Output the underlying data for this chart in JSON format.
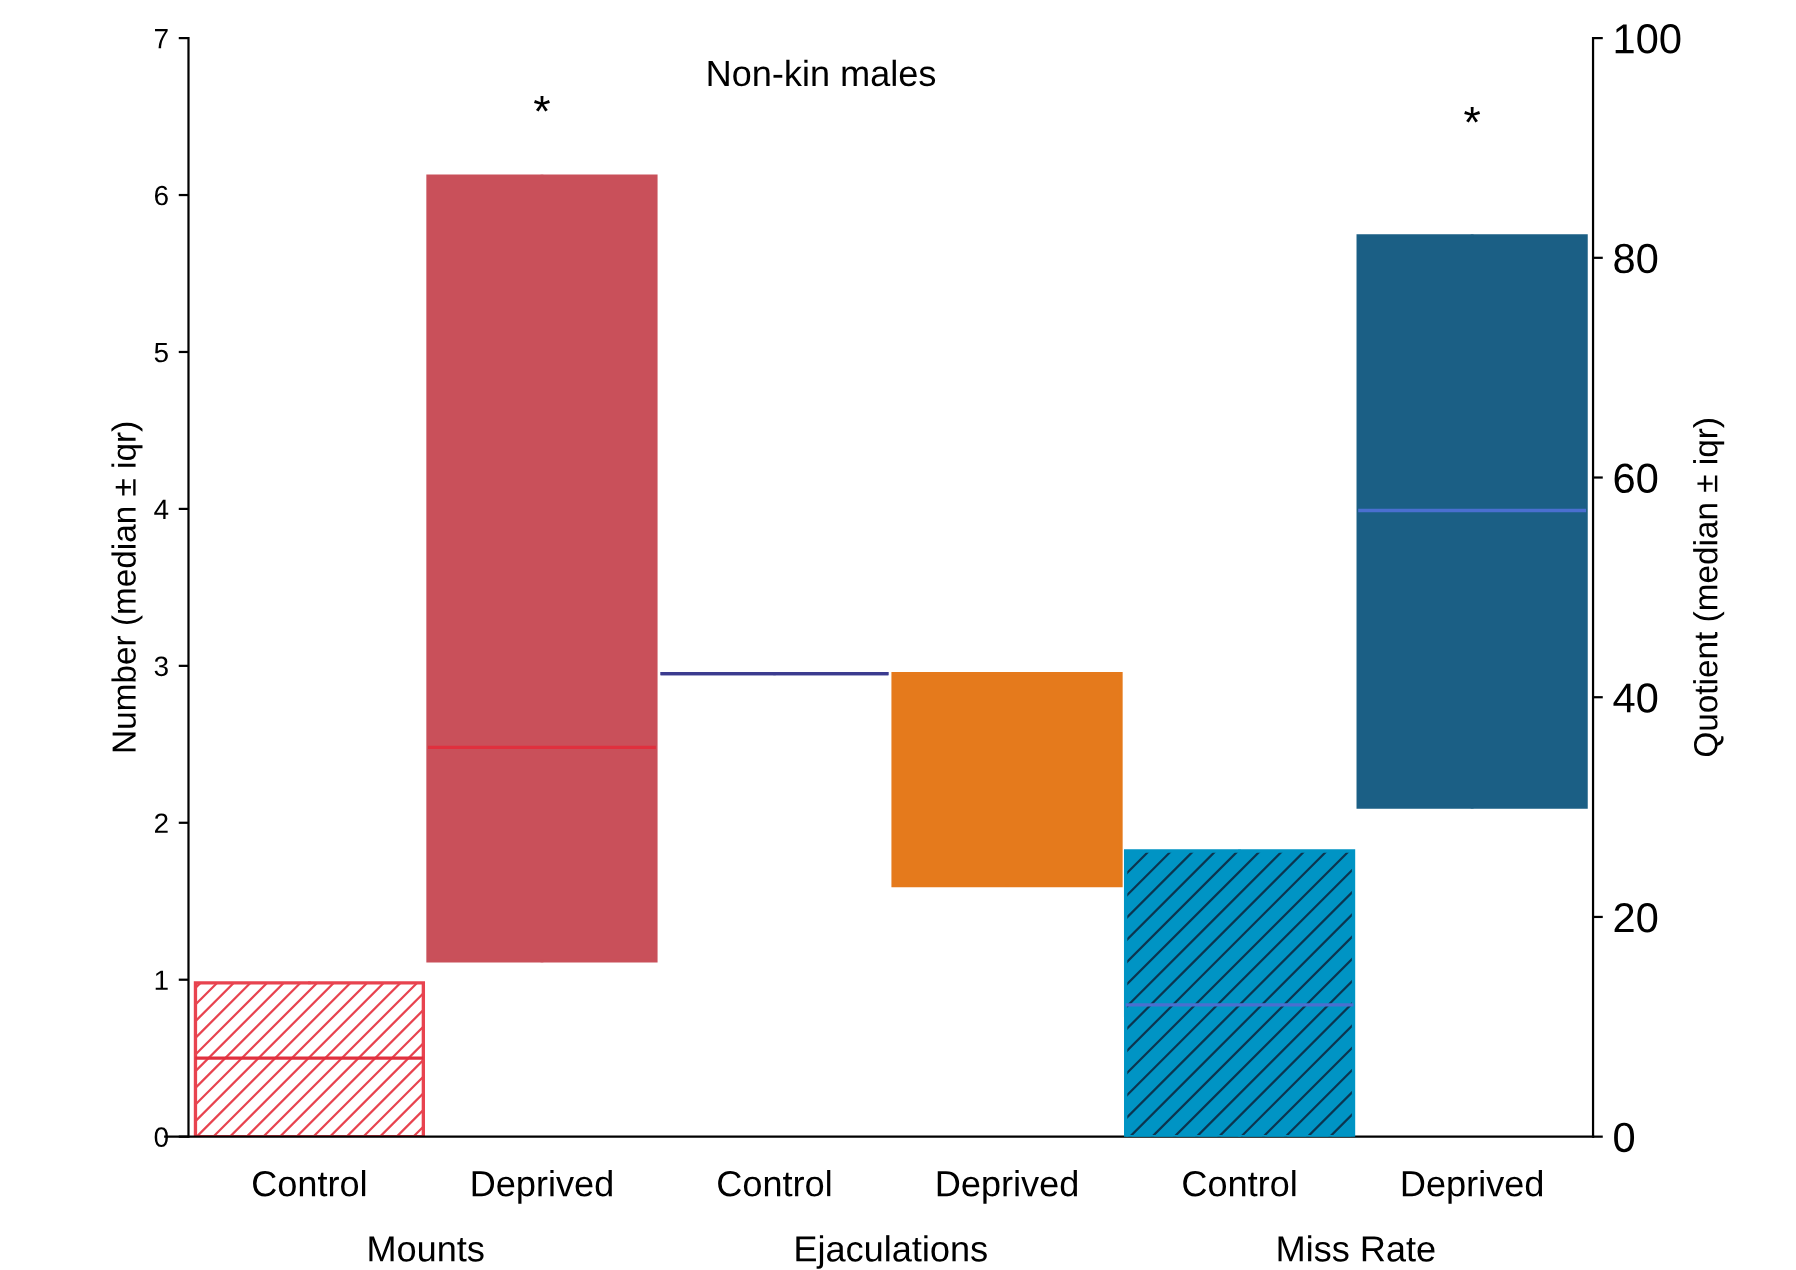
{
  "chart_data": {
    "type": "box",
    "title": "Non-kin males",
    "ylabel": "Number (median ± iqr)",
    "y2label": "Quotient (median ± iqr)",
    "categories": [
      "Control",
      "Deprived",
      "Control",
      "Deprived",
      "Control",
      "Deprived"
    ],
    "series": [
      {
        "colors": [
          "#e8434f",
          "#c9505a",
          "#3b3b8f",
          "#e57a1c",
          null,
          null
        ],
        "boxes": [
          {
            "low": 0,
            "q1": 0,
            "median": 0.5,
            "q3": 0.98,
            "high": 0.98
          },
          {
            "low": 1.12,
            "q1": 1.12,
            "median": 2.48,
            "q3": 6.12,
            "high": 6.12
          },
          {
            "low": 2.95,
            "q1": 2.95,
            "median": 2.95,
            "q3": 2.95,
            "high": 2.95
          },
          {
            "low": 1.6,
            "q1": 1.6,
            "median": 2.95,
            "q3": 2.95,
            "high": 2.95
          },
          null,
          null
        ]
      },
      {
        "axis": "y2",
        "colors": [
          null,
          null,
          null,
          null,
          "#0094c4",
          "#1b5f85"
        ],
        "boxes": [
          null,
          null,
          null,
          null,
          {
            "low": 0,
            "q1": 0,
            "median": 12,
            "q3": 26,
            "high": 26
          },
          {
            "low": 30,
            "q1": 30,
            "median": 57,
            "q3": 82,
            "high": 82
          }
        ]
      }
    ],
    "ylim": [
      0,
      7
    ],
    "yticks": [
      0,
      1,
      2,
      3,
      4,
      5,
      6,
      7
    ],
    "y2lim": [
      0,
      100
    ],
    "y2ticks": [
      0,
      20,
      40,
      60,
      80,
      100
    ],
    "annotations": [
      "Mounts",
      "Ejaculations",
      "Miss Rate",
      "*",
      "*"
    ],
    "grid": false,
    "legend": false
  }
}
